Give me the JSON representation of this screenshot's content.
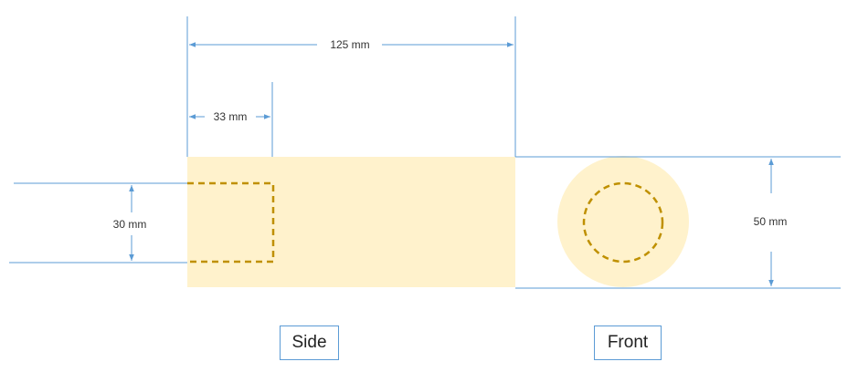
{
  "dimensions": {
    "overall_length": "125 mm",
    "hole_depth": "33 mm",
    "hole_diameter": "30 mm",
    "outer_diameter": "50 mm"
  },
  "views": {
    "side_label": "Side",
    "front_label": "Front"
  },
  "colors": {
    "body_fill": "#fff2cc",
    "hidden_line": "#bf9000",
    "dimension_line": "#5b9bd5"
  }
}
